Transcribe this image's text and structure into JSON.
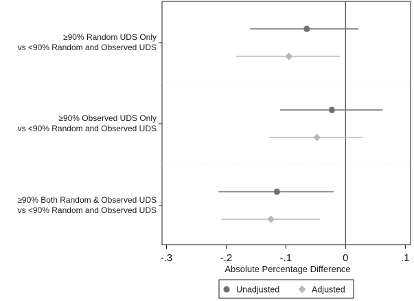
{
  "chart_data": {
    "type": "scatter",
    "subtype": "forest-plot",
    "title": "",
    "xlabel": "Absolute Percentage Difference",
    "ylabel": "",
    "xlim": [
      -0.3,
      0.11
    ],
    "xticks": [
      -0.3,
      -0.2,
      -0.1,
      0,
      0.1
    ],
    "xtick_labels": [
      "-.3",
      "-.2",
      "-.1",
      "0",
      ".1"
    ],
    "reference_line": 0,
    "grid": "faint horizontal dotted lines between groups",
    "legend_position": "bottom",
    "categories": [
      [
        "≥90% Random UDS Only",
        "vs <90% Random and Observed UDS"
      ],
      [
        "≥90% Observed UDS Only",
        "vs <90% Random and Observed UDS"
      ],
      [
        "≥90% Both Random & Observed UDS",
        "vs <90% Random and Observed UDS"
      ]
    ],
    "series": [
      {
        "name": "Unadjusted",
        "marker": "circle",
        "color": "#707070",
        "points": [
          {
            "estimate": -0.065,
            "lower": -0.16,
            "upper": 0.022
          },
          {
            "estimate": -0.023,
            "lower": -0.11,
            "upper": 0.062
          },
          {
            "estimate": -0.115,
            "lower": -0.213,
            "upper": -0.02
          }
        ]
      },
      {
        "name": "Adjusted",
        "marker": "diamond",
        "color": "#b8b8b8",
        "points": [
          {
            "estimate": -0.095,
            "lower": -0.183,
            "upper": -0.01
          },
          {
            "estimate": -0.048,
            "lower": -0.128,
            "upper": 0.028
          },
          {
            "estimate": -0.125,
            "lower": -0.208,
            "upper": -0.043
          }
        ]
      }
    ]
  }
}
